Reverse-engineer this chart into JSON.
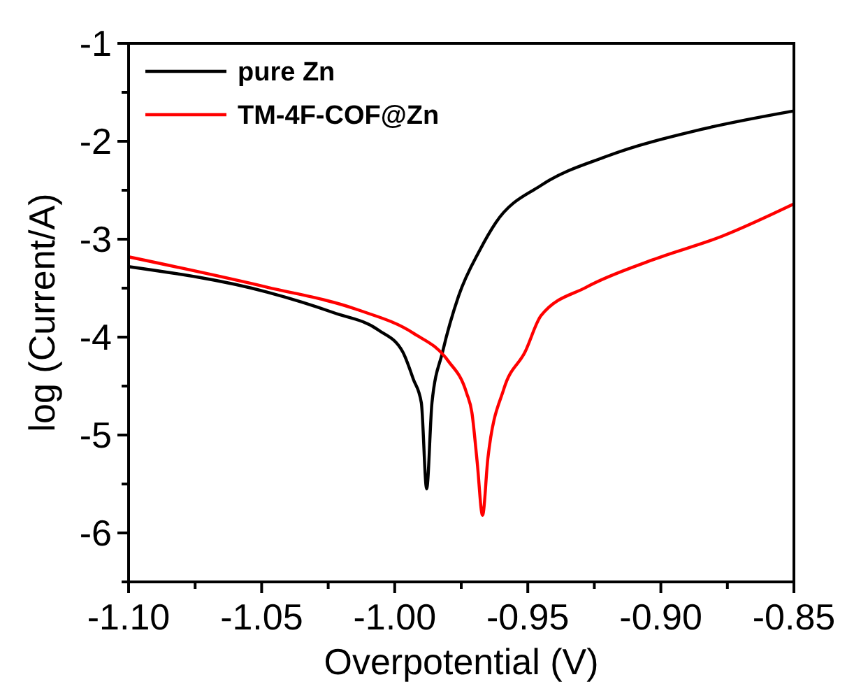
{
  "chart_data": {
    "type": "line",
    "xlabel": "Overpotential (V)",
    "ylabel": "log (Current/A)",
    "xlim": [
      -1.1,
      -0.85
    ],
    "ylim": [
      -6.5,
      -1
    ],
    "xticks": [
      {
        "value": -1.1,
        "label": "-1.10"
      },
      {
        "value": -1.075,
        "label": null
      },
      {
        "value": -1.05,
        "label": "-1.05"
      },
      {
        "value": -1.025,
        "label": null
      },
      {
        "value": -1.0,
        "label": "-1.00"
      },
      {
        "value": -0.975,
        "label": null
      },
      {
        "value": -0.95,
        "label": "-0.95"
      },
      {
        "value": -0.925,
        "label": null
      },
      {
        "value": -0.9,
        "label": "-0.90"
      },
      {
        "value": -0.875,
        "label": null
      },
      {
        "value": -0.85,
        "label": "-0.85"
      }
    ],
    "yticks": [
      {
        "value": -6.5,
        "label": null
      },
      -6,
      {
        "value": -5.5,
        "label": null
      },
      -5,
      {
        "value": -4.5,
        "label": null
      },
      -4,
      {
        "value": -3.5,
        "label": null
      },
      -3,
      {
        "value": -2.5,
        "label": null
      },
      -2,
      {
        "value": -1.5,
        "label": null
      },
      -1
    ],
    "legend": "top left",
    "grid": false,
    "marker": "none",
    "line_style": "solid",
    "series": [
      {
        "name": "pure Zn",
        "color": "#000000",
        "x": [
          -1.1,
          -1.048,
          -1.023,
          -1.006,
          -0.997,
          -0.993,
          -0.99,
          -0.988,
          -0.986,
          -0.982,
          -0.976,
          -0.968,
          -0.962,
          -0.945,
          -0.92,
          -0.885,
          -0.85
        ],
        "values": [
          -3.28,
          -3.54,
          -3.75,
          -3.93,
          -4.15,
          -4.43,
          -4.67,
          -5.55,
          -4.67,
          -4.15,
          -3.58,
          -3.11,
          -2.83,
          -2.45,
          -2.15,
          -1.88,
          -1.69
        ]
      },
      {
        "name": "TM-4F-COF@Zn",
        "color": "#ff0000",
        "x": [
          -1.1,
          -1.048,
          -1.014,
          -0.993,
          -0.98,
          -0.973,
          -0.971,
          -0.969,
          -0.967,
          -0.965,
          -0.959,
          -0.951,
          -0.945,
          -0.928,
          -0.903,
          -0.877,
          -0.85
        ],
        "values": [
          -3.18,
          -3.49,
          -3.72,
          -3.96,
          -4.24,
          -4.57,
          -4.77,
          -5.28,
          -5.82,
          -5.24,
          -4.53,
          -4.15,
          -3.78,
          -3.49,
          -3.21,
          -2.97,
          -2.64
        ]
      }
    ]
  }
}
